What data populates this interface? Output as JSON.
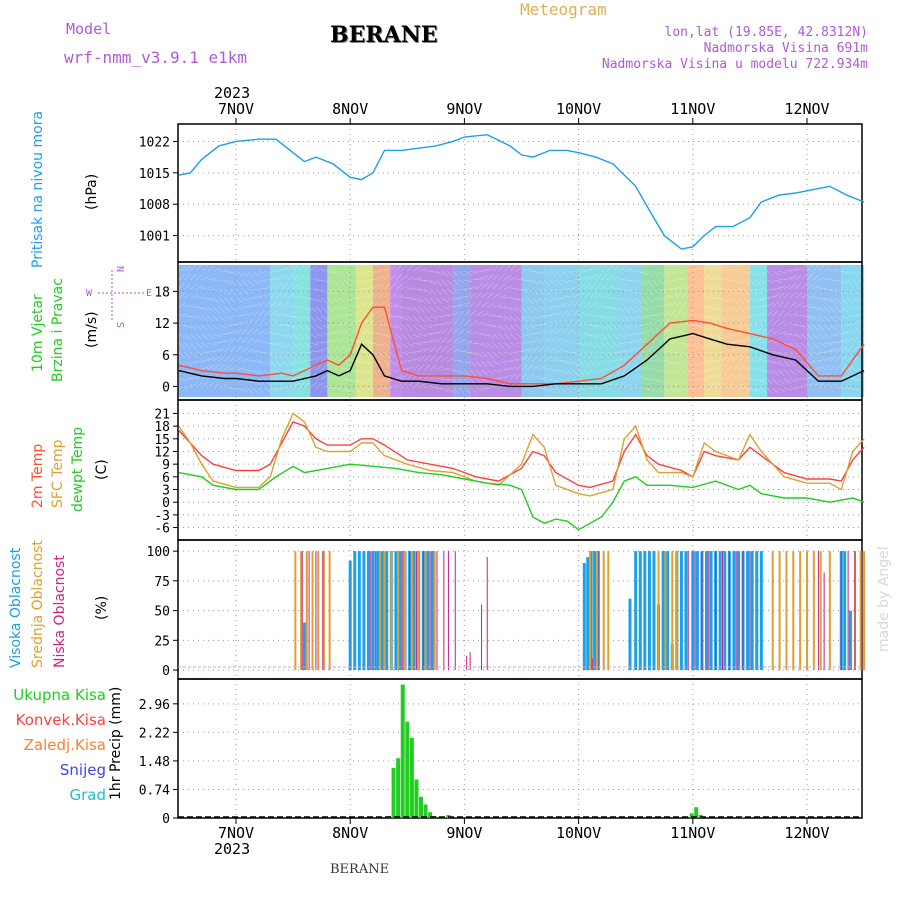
{
  "header": {
    "model_label": "Model",
    "model_name": "wrf-nmm_v3.9.1 e1km",
    "station": "BERANE",
    "meteogram_label": "Meteogram",
    "lonlat": "lon,lat (19.85E, 42.8312N)",
    "elevation": "Nadmorska Visina 691m",
    "model_elevation": "Nadmorska Visina u modelu 722.934m",
    "footer_station": "BERANE",
    "watermark": "made by Angel",
    "colors": {
      "model": "#b05ad8",
      "meteogram": "#e0b050",
      "station": "#000000",
      "info": "#b05ad8"
    }
  },
  "time_axis": {
    "year": "2023",
    "days": [
      "7NOV",
      "8NOV",
      "9NOV",
      "10NOV",
      "11NOV",
      "12NOV"
    ]
  },
  "chart_data": [
    {
      "id": "pressure",
      "type": "line",
      "ylabel_lines": [
        "Pritisak na nivou mora"
      ],
      "unit": "(hPa)",
      "label_colors": [
        "#1ca0e8"
      ],
      "yticks": [
        1001,
        1008,
        1015,
        1022
      ],
      "ylim": [
        996,
        1025
      ],
      "grid": true,
      "series": [
        {
          "color": "#1ca0e8",
          "x": [
            -0.5,
            -0.4,
            -0.3,
            -0.15,
            0,
            0.2,
            0.35,
            0.5,
            0.6,
            0.7,
            0.85,
            1.0,
            1.1,
            1.2,
            1.3,
            1.45,
            1.6,
            1.75,
            1.9,
            2.0,
            2.2,
            2.4,
            2.5,
            2.6,
            2.75,
            2.9,
            3.0,
            3.15,
            3.3,
            3.5,
            3.6,
            3.75,
            3.9,
            4.0,
            4.1,
            4.2,
            4.35,
            4.5,
            4.6,
            4.75,
            4.9,
            5.0,
            5.2,
            5.35,
            5.5
          ],
          "y": [
            1014.5,
            1015,
            1018,
            1021,
            1022,
            1022.5,
            1022.5,
            1019.5,
            1017.5,
            1018.5,
            1017,
            1014,
            1013.5,
            1015,
            1020,
            1020,
            1020.5,
            1021,
            1022,
            1023,
            1023.5,
            1021,
            1019,
            1018.5,
            1020,
            1020,
            1019.5,
            1018.5,
            1017,
            1012,
            1007.5,
            1001,
            998,
            998.5,
            1001,
            1003,
            1003,
            1005,
            1008.5,
            1010,
            1010.5,
            1011,
            1012,
            1010,
            1008.5
          ]
        }
      ]
    },
    {
      "id": "wind",
      "type": "line",
      "ylabel_lines": [
        "10m Vjetar",
        "Brzina i Pravac"
      ],
      "unit": "(m/s)",
      "label_colors": [
        "#22cc22",
        "#22cc22"
      ],
      "compass": {
        "n": "N",
        "s": "S",
        "w": "W",
        "e": "E"
      },
      "yticks": [
        0,
        6,
        12,
        18
      ],
      "ylim": [
        -2,
        23
      ],
      "grid": true,
      "series": [
        {
          "color": "#ff5030",
          "x": [
            -0.5,
            -0.3,
            -0.1,
            0,
            0.2,
            0.4,
            0.5,
            0.7,
            0.8,
            0.9,
            1.0,
            1.1,
            1.2,
            1.3,
            1.45,
            1.6,
            1.8,
            2.0,
            2.2,
            2.4,
            2.6,
            2.8,
            3.0,
            3.2,
            3.4,
            3.6,
            3.7,
            3.8,
            4.0,
            4.15,
            4.3,
            4.5,
            4.7,
            4.9,
            5.1,
            5.3,
            5.5
          ],
          "y": [
            4,
            3,
            2.5,
            2.5,
            2,
            2.5,
            2,
            4,
            5,
            4,
            6,
            12,
            15,
            15,
            3,
            2,
            2,
            2,
            1.5,
            0.5,
            0.5,
            0.5,
            1,
            1.5,
            4,
            8,
            10,
            12,
            12.5,
            12,
            11,
            10,
            9,
            7,
            2,
            2,
            8
          ]
        },
        {
          "color": "#000000",
          "x": [
            -0.5,
            -0.3,
            -0.1,
            0,
            0.2,
            0.4,
            0.5,
            0.7,
            0.8,
            0.9,
            1.0,
            1.1,
            1.2,
            1.3,
            1.45,
            1.6,
            1.8,
            2.0,
            2.2,
            2.4,
            2.6,
            2.8,
            3.0,
            3.2,
            3.4,
            3.6,
            3.7,
            3.8,
            4.0,
            4.15,
            4.3,
            4.5,
            4.7,
            4.9,
            5.1,
            5.3,
            5.5
          ],
          "y": [
            3,
            2,
            1.5,
            1.5,
            1,
            1,
            1,
            2,
            3,
            2,
            3,
            8,
            6,
            2,
            1,
            1,
            0.5,
            0.5,
            0.5,
            0,
            0,
            0.5,
            0.5,
            0.5,
            2,
            5,
            7,
            9,
            10,
            9,
            8,
            7.5,
            6,
            5,
            1,
            1,
            3
          ]
        }
      ]
    },
    {
      "id": "temperature",
      "type": "line",
      "ylabel_lines": [
        "2m Temp",
        "SFC Temp",
        "dewpt Temp"
      ],
      "unit": "(C)",
      "label_colors": [
        "#ff5030",
        "#e0a030",
        "#22cc22"
      ],
      "yticks": [
        -6,
        -3,
        0,
        3,
        6,
        9,
        12,
        15,
        18,
        21
      ],
      "ylim": [
        -8,
        23
      ],
      "grid": true,
      "series": [
        {
          "color": "#ff4040",
          "x": [
            -0.5,
            -0.4,
            -0.3,
            -0.2,
            0,
            0.2,
            0.3,
            0.4,
            0.5,
            0.6,
            0.7,
            0.8,
            1.0,
            1.1,
            1.2,
            1.3,
            1.5,
            1.7,
            1.9,
            2.1,
            2.3,
            2.5,
            2.6,
            2.7,
            2.8,
            3.0,
            3.1,
            3.3,
            3.4,
            3.5,
            3.6,
            3.7,
            3.9,
            4.0,
            4.1,
            4.2,
            4.4,
            4.5,
            4.6,
            4.8,
            5.0,
            5.2,
            5.3,
            5.4,
            5.5
          ],
          "y": [
            17,
            14,
            11,
            9,
            7.5,
            7.5,
            9,
            14,
            19,
            18,
            15,
            13.5,
            13.5,
            15,
            15,
            13.5,
            10,
            9,
            8,
            6,
            5,
            8,
            12,
            11,
            7,
            4,
            3.5,
            5,
            12,
            16,
            11,
            9,
            7.5,
            6,
            12,
            11,
            10,
            13,
            11,
            7,
            5.5,
            5.5,
            5,
            10,
            13
          ]
        },
        {
          "color": "#e0a030",
          "x": [
            -0.5,
            -0.4,
            -0.3,
            -0.2,
            0,
            0.2,
            0.3,
            0.4,
            0.5,
            0.6,
            0.7,
            0.8,
            1.0,
            1.1,
            1.2,
            1.3,
            1.5,
            1.7,
            1.9,
            2.1,
            2.3,
            2.5,
            2.6,
            2.7,
            2.8,
            3.0,
            3.1,
            3.3,
            3.4,
            3.5,
            3.6,
            3.7,
            3.9,
            4.0,
            4.1,
            4.2,
            4.4,
            4.5,
            4.6,
            4.8,
            5.0,
            5.2,
            5.3,
            5.4,
            5.5
          ],
          "y": [
            18,
            14,
            9,
            5,
            3.5,
            3.5,
            6,
            15,
            21,
            19,
            13,
            12,
            12,
            14,
            14,
            11,
            9,
            7.5,
            7,
            5,
            4,
            9,
            16,
            13,
            4,
            2,
            1.5,
            3,
            15,
            18,
            10,
            7,
            7,
            6,
            14,
            12,
            10,
            16,
            12,
            6,
            4.5,
            4.5,
            3,
            12,
            15
          ]
        },
        {
          "color": "#22cc22",
          "x": [
            -0.5,
            -0.4,
            -0.3,
            -0.2,
            0,
            0.2,
            0.35,
            0.5,
            0.6,
            0.8,
            1.0,
            1.2,
            1.4,
            1.6,
            1.8,
            2.0,
            2.2,
            2.4,
            2.5,
            2.6,
            2.7,
            2.8,
            2.9,
            3.0,
            3.2,
            3.3,
            3.4,
            3.5,
            3.6,
            3.8,
            4.0,
            4.2,
            4.4,
            4.5,
            4.6,
            4.8,
            5.0,
            5.2,
            5.4,
            5.5
          ],
          "y": [
            7,
            6.5,
            6,
            4,
            3,
            3,
            6,
            8.5,
            7,
            8,
            9,
            8.5,
            8,
            7,
            6.5,
            5.5,
            4.5,
            4,
            3,
            -3.5,
            -5,
            -4,
            -4.5,
            -6.5,
            -3.5,
            0,
            5,
            6,
            4,
            4,
            3.5,
            5,
            3,
            4,
            2,
            1,
            1,
            0,
            1,
            0
          ]
        }
      ]
    },
    {
      "id": "clouds",
      "type": "bar",
      "ylabel_lines": [
        "Visoka Oblacnost",
        "Srednja Oblacnost",
        "Niska Oblacnost"
      ],
      "unit": "(%)",
      "label_colors": [
        "#1ca0e8",
        "#e0a030",
        "#d02080"
      ],
      "yticks": [
        0,
        25,
        50,
        75,
        100
      ],
      "ylim": [
        -5,
        106
      ],
      "grid": true,
      "series": [
        {
          "name": "Visoka Oblacnost",
          "color": "#1ca0e8",
          "width": 3,
          "x": [
            0.6,
            1.0,
            1.04,
            1.08,
            1.12,
            1.16,
            1.2,
            1.24,
            1.28,
            1.32,
            1.36,
            1.4,
            1.44,
            1.48,
            1.52,
            1.56,
            1.6,
            1.64,
            1.68,
            1.72,
            3.05,
            3.08,
            3.11,
            3.14,
            3.17,
            3.45,
            3.5,
            3.54,
            3.58,
            3.62,
            3.66,
            3.7,
            3.74,
            3.78,
            3.82,
            3.86,
            3.9,
            3.94,
            4.0,
            4.04,
            4.08,
            4.12,
            4.16,
            4.2,
            4.24,
            4.28,
            4.32,
            4.36,
            4.4,
            4.44,
            4.48,
            4.52,
            4.56,
            4.6,
            5.3,
            5.33,
            5.38
          ],
          "y": [
            40,
            92,
            100,
            100,
            100,
            100,
            100,
            100,
            100,
            100,
            100,
            100,
            100,
            100,
            100,
            100,
            100,
            100,
            100,
            100,
            90,
            95,
            100,
            100,
            100,
            60,
            100,
            100,
            100,
            100,
            100,
            55,
            100,
            100,
            22,
            100,
            100,
            100,
            100,
            100,
            100,
            100,
            100,
            100,
            100,
            100,
            100,
            100,
            100,
            100,
            100,
            100,
            100,
            100,
            100,
            100,
            50
          ]
        },
        {
          "name": "Srednja Oblacnost",
          "color": "#e0a030",
          "width": 2,
          "x": [
            0.52,
            0.57,
            0.62,
            0.67,
            0.72,
            0.77,
            0.82,
            1.26,
            1.3,
            1.36,
            1.42,
            1.48,
            1.54,
            1.6,
            1.66,
            1.74,
            3.1,
            3.16,
            3.22,
            3.26,
            3.7,
            3.76,
            3.82,
            3.86,
            4.7,
            4.76,
            4.82,
            4.88,
            4.94,
            5.0,
            5.06,
            5.12,
            5.2,
            5.42,
            5.47,
            5.5
          ],
          "y": [
            100,
            100,
            100,
            100,
            100,
            100,
            100,
            100,
            100,
            100,
            100,
            100,
            100,
            100,
            100,
            100,
            100,
            100,
            100,
            100,
            100,
            100,
            100,
            100,
            100,
            100,
            100,
            100,
            100,
            100,
            100,
            100,
            100,
            100,
            100,
            100
          ]
        },
        {
          "name": "Niska Oblacnost",
          "color": "#c02090",
          "width": 1,
          "x": [
            0.58,
            0.64,
            0.7,
            0.76,
            1.18,
            1.22,
            1.46,
            1.52,
            1.58,
            1.64,
            1.7,
            1.76,
            1.82,
            1.86,
            1.92,
            2.02,
            2.05,
            2.15,
            2.2,
            3.12,
            3.18,
            3.96,
            4.02,
            4.08,
            4.14,
            4.2,
            4.26,
            4.32,
            4.38,
            4.44,
            4.5,
            5.1,
            5.15,
            5.3,
            5.36,
            5.42,
            5.48
          ],
          "y": [
            100,
            100,
            100,
            100,
            100,
            100,
            100,
            100,
            100,
            100,
            100,
            100,
            100,
            100,
            100,
            12,
            15,
            55,
            95,
            10,
            100,
            100,
            100,
            100,
            100,
            100,
            100,
            100,
            100,
            100,
            100,
            100,
            82,
            100,
            100,
            100,
            100
          ]
        }
      ]
    },
    {
      "id": "precip",
      "type": "bar",
      "ylabel_lines": [
        "1hr Precip (mm)"
      ],
      "unit": "",
      "label_colors": [
        "#000000"
      ],
      "legend": [
        {
          "label": "Ukupna Kisa",
          "color": "#22cc22"
        },
        {
          "label": "Konvek.Kisa",
          "color": "#ff4040"
        },
        {
          "label": "Zaledj.Kisa",
          "color": "#ff8030"
        },
        {
          "label": "Snijeg",
          "color": "#4040ff"
        },
        {
          "label": "Grad",
          "color": "#20c0c0"
        }
      ],
      "yticks": [
        0,
        0.74,
        1.48,
        2.22,
        2.96
      ],
      "ylim": [
        0,
        3.5
      ],
      "grid": true,
      "series": [
        {
          "name": "Ukupna Kisa",
          "color": "#22cc22",
          "x": [
            1.34,
            1.38,
            1.42,
            1.46,
            1.5,
            1.54,
            1.58,
            1.62,
            1.66,
            1.7,
            1.74,
            1.82,
            1.86,
            3.99,
            4.03,
            4.07,
            4.43
          ],
          "y": [
            0.05,
            1.3,
            1.55,
            3.46,
            2.5,
            2.08,
            1.0,
            0.55,
            0.35,
            0.15,
            0.05,
            0.02,
            0.08,
            0.12,
            0.28,
            0.08,
            0.03
          ]
        }
      ]
    }
  ]
}
